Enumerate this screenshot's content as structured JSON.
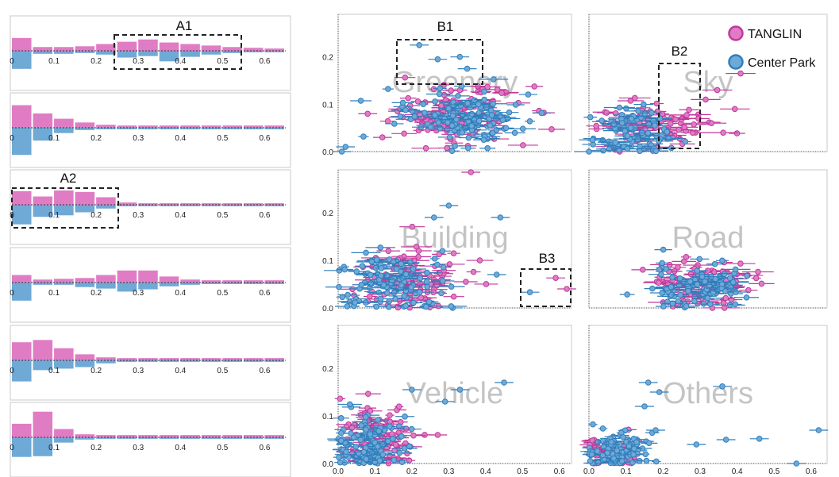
{
  "colors": {
    "tanglin": "#e07cc4",
    "center_park": "#6fa9d6",
    "tanglin_edge": "#c0399a",
    "center_park_edge": "#2f7fbd"
  },
  "legend": {
    "position": "top-right",
    "entries": [
      "TANGLIN",
      "Center Park"
    ]
  },
  "chart_data": [
    {
      "id": "hist-1",
      "type": "bar",
      "x_ticks": [
        "0",
        "0.1",
        "0.2",
        "0.3",
        "0.4",
        "0.5",
        "0.6"
      ],
      "xlim": [
        0,
        0.65
      ],
      "bin_width": 0.05,
      "series": [
        {
          "name": "TANGLIN",
          "values": [
            0.17,
            0.05,
            0.05,
            0.06,
            0.09,
            0.12,
            0.15,
            0.11,
            0.09,
            0.07,
            0.05,
            0.04,
            0.03
          ]
        },
        {
          "name": "Center Park",
          "values": [
            0.24,
            0.04,
            0.04,
            0.03,
            0.05,
            0.09,
            0.07,
            0.14,
            0.08,
            0.05,
            0.03,
            0.02,
            0.02
          ]
        }
      ]
    },
    {
      "id": "hist-2",
      "type": "bar",
      "x_ticks": [
        "0",
        "0.1",
        "0.2",
        "0.3",
        "0.4",
        "0.5",
        "0.6"
      ],
      "xlim": [
        0,
        0.65
      ],
      "bin_width": 0.05,
      "series": [
        {
          "name": "TANGLIN",
          "values": [
            0.3,
            0.19,
            0.12,
            0.07,
            0.04,
            0.03,
            0.03,
            0.03,
            0.03,
            0.03,
            0.03,
            0.03,
            0.03
          ]
        },
        {
          "name": "Center Park",
          "values": [
            0.36,
            0.17,
            0.07,
            0.03,
            0.02,
            0.02,
            0.02,
            0.02,
            0.02,
            0.02,
            0.02,
            0.02,
            0.02
          ]
        }
      ]
    },
    {
      "id": "hist-3",
      "type": "bar",
      "x_ticks": [
        "0",
        "0.1",
        "0.2",
        "0.3",
        "0.4",
        "0.5",
        "0.6"
      ],
      "xlim": [
        0,
        0.65
      ],
      "bin_width": 0.05,
      "series": [
        {
          "name": "TANGLIN",
          "values": [
            0.18,
            0.11,
            0.19,
            0.17,
            0.1,
            0.03,
            0.02,
            0.02,
            0.02,
            0.02,
            0.02,
            0.02,
            0.02
          ]
        },
        {
          "name": "Center Park",
          "values": [
            0.26,
            0.16,
            0.14,
            0.1,
            0.05,
            0.02,
            0.02,
            0.02,
            0.02,
            0.02,
            0.02,
            0.02,
            0.02
          ]
        }
      ]
    },
    {
      "id": "hist-4",
      "type": "bar",
      "x_ticks": [
        "0",
        "0.1",
        "0.2",
        "0.3",
        "0.4",
        "0.5",
        "0.6"
      ],
      "xlim": [
        0,
        0.65
      ],
      "bin_width": 0.05,
      "series": [
        {
          "name": "TANGLIN",
          "values": [
            0.1,
            0.04,
            0.05,
            0.06,
            0.1,
            0.16,
            0.16,
            0.08,
            0.04,
            0.03,
            0.03,
            0.03,
            0.03
          ]
        },
        {
          "name": "Center Park",
          "values": [
            0.24,
            0.03,
            0.03,
            0.06,
            0.08,
            0.12,
            0.09,
            0.05,
            0.03,
            0.02,
            0.02,
            0.02,
            0.02
          ]
        }
      ]
    },
    {
      "id": "hist-5",
      "type": "bar",
      "x_ticks": [
        "0",
        "0.1",
        "0.2",
        "0.3",
        "0.4",
        "0.5",
        "0.6"
      ],
      "xlim": [
        0,
        0.65
      ],
      "bin_width": 0.05,
      "series": [
        {
          "name": "TANGLIN",
          "values": [
            0.24,
            0.27,
            0.16,
            0.08,
            0.04,
            0.03,
            0.03,
            0.03,
            0.03,
            0.03,
            0.03,
            0.03,
            0.03
          ]
        },
        {
          "name": "Center Park",
          "values": [
            0.28,
            0.13,
            0.11,
            0.09,
            0.04,
            0.02,
            0.02,
            0.02,
            0.02,
            0.02,
            0.02,
            0.02,
            0.02
          ]
        }
      ]
    },
    {
      "id": "hist-6",
      "type": "bar",
      "x_ticks": [
        "0",
        "0.1",
        "0.2",
        "0.3",
        "0.4",
        "0.5",
        "0.6"
      ],
      "xlim": [
        0,
        0.65
      ],
      "bin_width": 0.05,
      "series": [
        {
          "name": "TANGLIN",
          "values": [
            0.18,
            0.34,
            0.11,
            0.04,
            0.03,
            0.03,
            0.03,
            0.03,
            0.03,
            0.03,
            0.03,
            0.03,
            0.03
          ]
        },
        {
          "name": "Center Park",
          "values": [
            0.26,
            0.25,
            0.07,
            0.03,
            0.02,
            0.02,
            0.02,
            0.02,
            0.02,
            0.02,
            0.02,
            0.02,
            0.02
          ]
        }
      ]
    },
    {
      "id": "scatter-greenery",
      "type": "scatter",
      "label": "Greenery",
      "xlim": [
        0,
        0.62
      ],
      "ylim": [
        0,
        0.29
      ],
      "x_ticks": [],
      "y_ticks": [
        "0.0",
        "0.1",
        "0.2"
      ],
      "clusters": [
        {
          "series": "TANGLIN",
          "cx": 0.32,
          "cy": 0.08,
          "sx": 0.09,
          "sy": 0.03,
          "n": 120,
          "err": 0.03
        },
        {
          "series": "Center Park",
          "cx": 0.34,
          "cy": 0.075,
          "sx": 0.08,
          "sy": 0.028,
          "n": 120,
          "err": 0.03
        }
      ],
      "points": [
        {
          "series": "Center Park",
          "x": 0.22,
          "y": 0.225
        },
        {
          "series": "Center Park",
          "x": 0.33,
          "y": 0.2
        },
        {
          "series": "Center Park",
          "x": 0.35,
          "y": 0.175
        },
        {
          "series": "Center Park",
          "x": 0.27,
          "y": 0.195
        },
        {
          "series": "Center Park",
          "x": 0.01,
          "y": 0.0
        },
        {
          "series": "Center Park",
          "x": 0.02,
          "y": 0.01
        },
        {
          "series": "TANGLIN",
          "x": 0.08,
          "y": 0.08
        },
        {
          "series": "TANGLIN",
          "x": 0.12,
          "y": 0.03
        }
      ]
    },
    {
      "id": "scatter-sky",
      "type": "scatter",
      "label": "Sky",
      "xlim": [
        0,
        0.4
      ],
      "ylim": [
        0,
        0.29
      ],
      "x_ticks": [],
      "y_ticks": [],
      "clusters": [
        {
          "series": "TANGLIN",
          "cx": 0.09,
          "cy": 0.05,
          "sx": 0.05,
          "sy": 0.03,
          "n": 90,
          "err": 0.02
        },
        {
          "series": "Center Park",
          "cx": 0.07,
          "cy": 0.04,
          "sx": 0.04,
          "sy": 0.025,
          "n": 90,
          "err": 0.02
        }
      ],
      "points": [
        {
          "series": "TANGLIN",
          "x": 0.26,
          "y": 0.165
        },
        {
          "series": "TANGLIN",
          "x": 0.22,
          "y": 0.13
        },
        {
          "series": "TANGLIN",
          "x": 0.21,
          "y": 0.06
        },
        {
          "series": "TANGLIN",
          "x": 0.23,
          "y": 0.04
        },
        {
          "series": "TANGLIN",
          "x": 0.2,
          "y": 0.11
        },
        {
          "series": "TANGLIN",
          "x": 0.25,
          "y": 0.09
        },
        {
          "series": "Center Park",
          "x": 0.0,
          "y": 0.0
        }
      ]
    },
    {
      "id": "scatter-building",
      "type": "scatter",
      "label": "Building",
      "xlim": [
        0,
        0.62
      ],
      "ylim": [
        0,
        0.29
      ],
      "x_ticks": [],
      "y_ticks": [
        "0.0",
        "0.1",
        "0.2"
      ],
      "clusters": [
        {
          "series": "TANGLIN",
          "cx": 0.18,
          "cy": 0.06,
          "sx": 0.08,
          "sy": 0.035,
          "n": 110,
          "err": 0.03
        },
        {
          "series": "Center Park",
          "cx": 0.14,
          "cy": 0.055,
          "sx": 0.08,
          "sy": 0.035,
          "n": 110,
          "err": 0.03
        }
      ],
      "points": [
        {
          "series": "TANGLIN",
          "x": 0.36,
          "y": 0.285
        },
        {
          "series": "Center Park",
          "x": 0.3,
          "y": 0.215
        },
        {
          "series": "Center Park",
          "x": 0.44,
          "y": 0.19
        },
        {
          "series": "Center Park",
          "x": 0.26,
          "y": 0.19
        },
        {
          "series": "Center Park",
          "x": 0.43,
          "y": 0.07
        },
        {
          "series": "TANGLIN",
          "x": 0.59,
          "y": 0.063
        },
        {
          "series": "Center Park",
          "x": 0.52,
          "y": 0.033
        },
        {
          "series": "TANGLIN",
          "x": 0.62,
          "y": 0.04
        }
      ]
    },
    {
      "id": "scatter-road",
      "type": "scatter",
      "label": "Road",
      "xlim": [
        0,
        0.62
      ],
      "ylim": [
        0,
        0.29
      ],
      "x_ticks": [],
      "y_ticks": [],
      "clusters": [
        {
          "series": "TANGLIN",
          "cx": 0.3,
          "cy": 0.05,
          "sx": 0.07,
          "sy": 0.025,
          "n": 100,
          "err": 0.03
        },
        {
          "series": "Center Park",
          "cx": 0.29,
          "cy": 0.045,
          "sx": 0.06,
          "sy": 0.022,
          "n": 100,
          "err": 0.03
        }
      ],
      "points": []
    },
    {
      "id": "scatter-vehicle",
      "type": "scatter",
      "label": "Vehicle",
      "xlim": [
        0,
        0.62
      ],
      "ylim": [
        0,
        0.29
      ],
      "x_ticks": [
        "0.0",
        "0.1",
        "0.2",
        "0.3",
        "0.4",
        "0.5",
        "0.6"
      ],
      "y_ticks": [
        "0.0",
        "0.1",
        "0.2"
      ],
      "clusters": [
        {
          "series": "TANGLIN",
          "cx": 0.11,
          "cy": 0.05,
          "sx": 0.05,
          "sy": 0.035,
          "n": 110,
          "err": 0.025
        },
        {
          "series": "Center Park",
          "cx": 0.09,
          "cy": 0.04,
          "sx": 0.05,
          "sy": 0.035,
          "n": 110,
          "err": 0.025
        }
      ],
      "points": [
        {
          "series": "Center Park",
          "x": 0.45,
          "y": 0.17
        },
        {
          "series": "Center Park",
          "x": 0.33,
          "y": 0.155
        },
        {
          "series": "Center Park",
          "x": 0.2,
          "y": 0.155
        },
        {
          "series": "TANGLIN",
          "x": 0.27,
          "y": 0.06
        },
        {
          "series": "Center Park",
          "x": 0.29,
          "y": 0.13
        }
      ]
    },
    {
      "id": "scatter-others",
      "type": "scatter",
      "label": "Others",
      "xlim": [
        0,
        0.63
      ],
      "ylim": [
        0,
        0.29
      ],
      "x_ticks": [
        "0.0",
        "0.1",
        "0.2",
        "0.3",
        "0.4",
        "0.5",
        "0.6"
      ],
      "y_ticks": [],
      "clusters": [
        {
          "series": "TANGLIN",
          "cx": 0.06,
          "cy": 0.02,
          "sx": 0.035,
          "sy": 0.015,
          "n": 90,
          "err": 0.02
        },
        {
          "series": "Center Park",
          "cx": 0.07,
          "cy": 0.025,
          "sx": 0.04,
          "sy": 0.02,
          "n": 90,
          "err": 0.02
        }
      ],
      "points": [
        {
          "series": "Center Park",
          "x": 0.16,
          "y": 0.17
        },
        {
          "series": "Center Park",
          "x": 0.36,
          "y": 0.162
        },
        {
          "series": "Center Park",
          "x": 0.19,
          "y": 0.15
        },
        {
          "series": "Center Park",
          "x": 0.15,
          "y": 0.12
        },
        {
          "series": "Center Park",
          "x": 0.37,
          "y": 0.05
        },
        {
          "series": "Center Park",
          "x": 0.46,
          "y": 0.052
        },
        {
          "series": "Center Park",
          "x": 0.62,
          "y": 0.07
        },
        {
          "series": "Center Park",
          "x": 0.56,
          "y": 0.0
        },
        {
          "series": "Center Park",
          "x": 0.29,
          "y": 0.04
        },
        {
          "series": "Center Park",
          "x": 0.18,
          "y": 0.07
        }
      ]
    }
  ],
  "callouts": [
    "A1",
    "A2",
    "B1",
    "B2",
    "B3"
  ]
}
